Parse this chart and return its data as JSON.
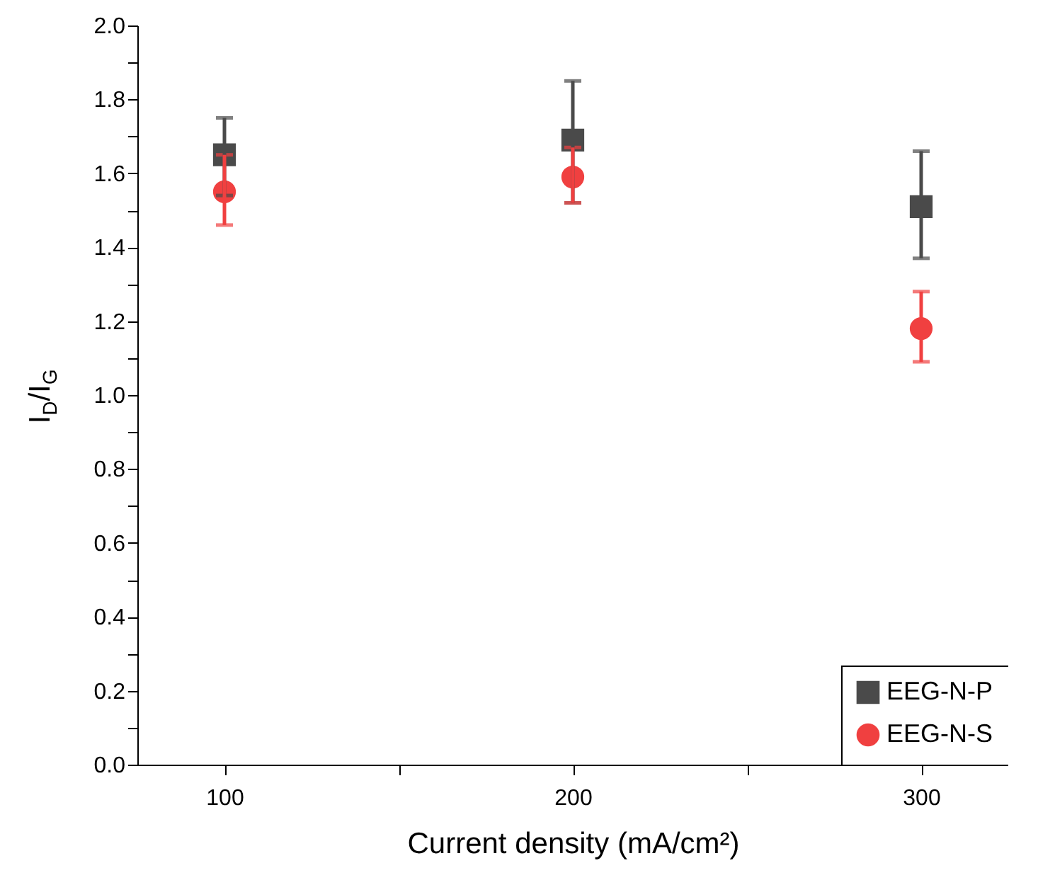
{
  "chart_data": {
    "type": "scatter",
    "xlabel": "Current density (mA/cm²)",
    "ylabel": "I$_{D}$/I$_{G}$",
    "x": [
      100,
      200,
      300
    ],
    "series": [
      {
        "name": "EEG-N-P",
        "color": "#4a4a4a",
        "marker": "square",
        "values": [
          1.65,
          1.69,
          1.51
        ],
        "errors": [
          [
            1.54,
            1.75
          ],
          [
            1.52,
            1.85
          ],
          [
            1.37,
            1.66
          ]
        ]
      },
      {
        "name": "EEG-N-S",
        "color": "#f04040",
        "marker": "circle",
        "values": [
          1.55,
          1.59,
          1.18
        ],
        "errors": [
          [
            1.46,
            1.65
          ],
          [
            1.52,
            1.67
          ],
          [
            1.09,
            1.28
          ]
        ]
      }
    ],
    "xlim": [
      75,
      325
    ],
    "xticks": [
      100,
      {
        "value": 150,
        "label": null
      },
      200,
      {
        "value": 250,
        "label": null
      },
      300
    ],
    "ylim": [
      0,
      2
    ],
    "yticks": [
      {
        "value": 0,
        "label": "0.0"
      },
      {
        "value": 0.1,
        "label": null
      },
      {
        "value": 0.2,
        "label": "0.2"
      },
      {
        "value": 0.3,
        "label": null
      },
      {
        "value": 0.4,
        "label": "0.4"
      },
      {
        "value": 0.5,
        "label": null
      },
      {
        "value": 0.6,
        "label": "0.6"
      },
      {
        "value": 0.7,
        "label": null
      },
      {
        "value": 0.8,
        "label": "0.8"
      },
      {
        "value": 0.9,
        "label": null
      },
      {
        "value": 1,
        "label": "1.0"
      },
      {
        "value": 1.1,
        "label": null
      },
      {
        "value": 1.2,
        "label": "1.2"
      },
      {
        "value": 1.3,
        "label": null
      },
      {
        "value": 1.4,
        "label": "1.4"
      },
      {
        "value": 1.5,
        "label": null
      },
      {
        "value": 1.6,
        "label": "1.6"
      },
      {
        "value": 1.7,
        "label": null
      },
      {
        "value": 1.8,
        "label": "1.8"
      },
      {
        "value": 1.9,
        "label": null
      },
      {
        "value": 2,
        "label": "2.0"
      }
    ],
    "grid": false,
    "legend": "bottom right"
  }
}
